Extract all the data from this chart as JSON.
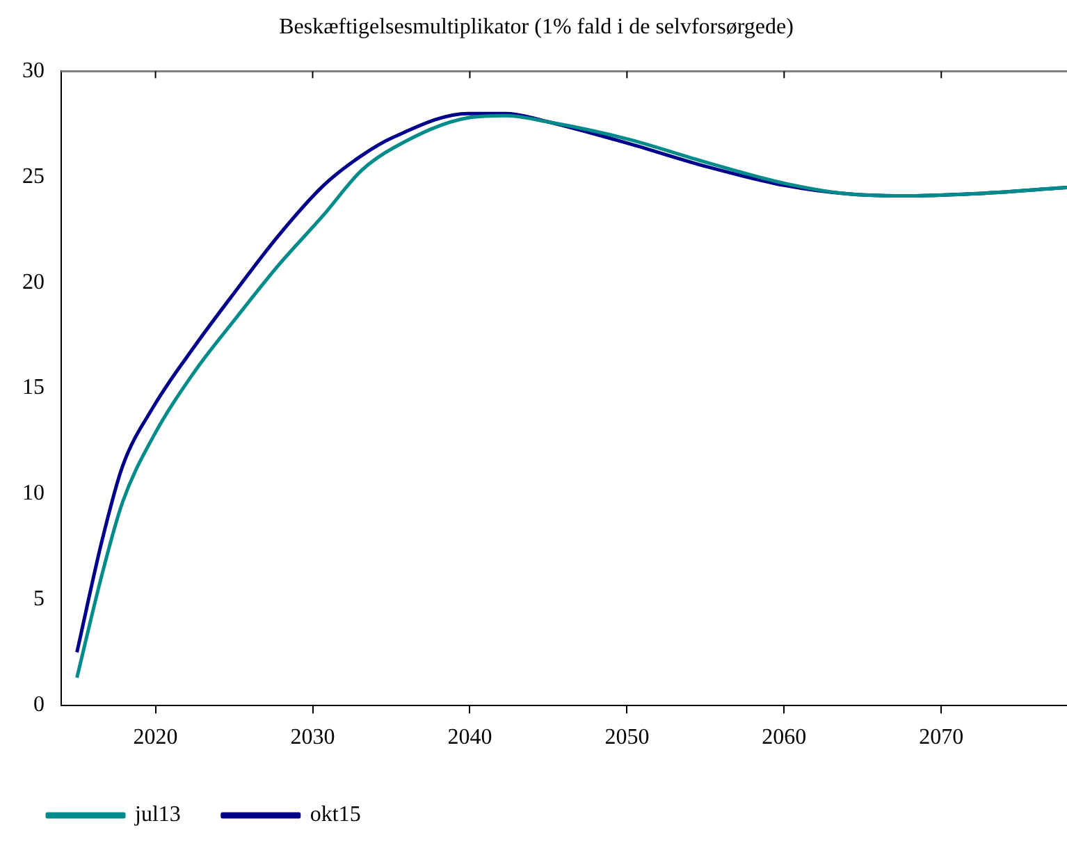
{
  "chart_data": {
    "type": "line",
    "title": "Beskæftigelsesmultiplikator (1% fald i de selvforsørgede)",
    "x": [
      2015,
      2016.6,
      2017.9,
      2019.85,
      2022.5,
      2025.1,
      2027.8,
      2030.7,
      2033.1,
      2035.2,
      2039.9,
      2042.3,
      2045,
      2050,
      2055,
      2060,
      2064,
      2068,
      2072,
      2078
    ],
    "series": [
      {
        "name": "jul13",
        "color": "#008b8b",
        "values": [
          1.3,
          6.2,
          9.6,
          12.7,
          15.8,
          18.3,
          20.8,
          23.2,
          25.3,
          26.4,
          27.8,
          27.9,
          27.6,
          26.8,
          25.7,
          24.7,
          24.2,
          24.1,
          24.2,
          24.5
        ]
      },
      {
        "name": "okt15",
        "color": "#00008b",
        "values": [
          2.5,
          7.8,
          11.3,
          14.1,
          17.0,
          19.6,
          22.2,
          24.6,
          26.0,
          26.9,
          28.0,
          28.0,
          27.6,
          26.6,
          25.5,
          24.6,
          24.2,
          24.1,
          24.2,
          24.5
        ]
      }
    ],
    "xlim": [
      2014,
      2078
    ],
    "xticks": [
      2020,
      2030,
      2040,
      2050,
      2060,
      2070
    ],
    "ylim": [
      0,
      30
    ],
    "yticks": [
      0,
      5,
      10,
      15,
      20,
      25,
      30
    ],
    "grid": false,
    "legend": "bottom left",
    "marker": "none",
    "line_style": "solid"
  }
}
